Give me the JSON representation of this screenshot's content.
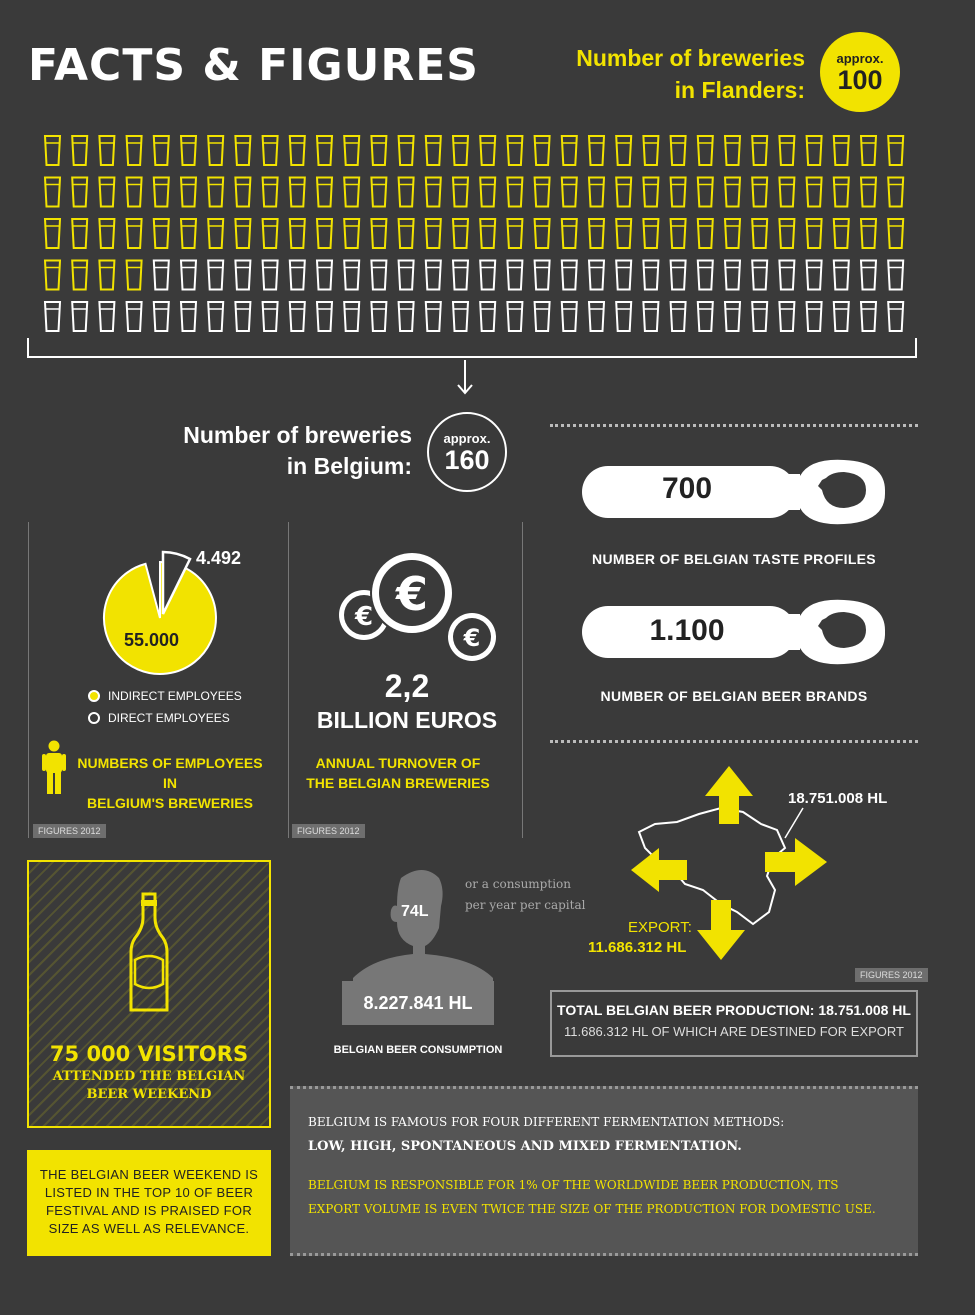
{
  "title": "FACTS & FIGURES",
  "flanders": {
    "label_line1": "Number of breweries",
    "label_line2": "in Flanders:",
    "approx": "approx.",
    "count": "100",
    "count_value": 100
  },
  "belgium": {
    "label_line1": "Number of breweries",
    "label_line2": "in Belgium:",
    "approx": "approx.",
    "count": "160",
    "count_value": 160
  },
  "employees": {
    "direct_value": "4.492",
    "indirect_value": "55.000",
    "legend_indirect": "INDIRECT EMPLOYEES",
    "legend_direct": "DIRECT EMPLOYEES",
    "label_line1": "NUMBERS OF EMPLOYEES IN",
    "label_line2": "BELGIUM'S BREWERIES",
    "figures": "FIGURES 2012"
  },
  "turnover": {
    "value": "2,2",
    "unit": "BILLION EUROS",
    "label_line1": "ANNUAL TURNOVER OF",
    "label_line2": "THE BELGIAN BREWERIES",
    "figures": "FIGURES 2012"
  },
  "taste_profiles": {
    "value": "700",
    "label": "NUMBER OF BELGIAN TASTE PROFILES"
  },
  "beer_brands": {
    "value": "1.100",
    "label": "NUMBER OF BELGIAN BEER BRANDS"
  },
  "map": {
    "total": "18.751.008 HL",
    "export_label": "EXPORT:",
    "export_value": "11.686.312 HL",
    "figures": "FIGURES 2012"
  },
  "consumption": {
    "per_capita": "74L",
    "note_line1": "or a consumption",
    "note_line2": "per year per capital",
    "value": "8.227.841 HL",
    "label": "BELGIAN BEER CONSUMPTION"
  },
  "production": {
    "line1": "TOTAL BELGIAN BEER PRODUCTION: 18.751.008 HL",
    "line2": "11.686.312 HL OF WHICH ARE DESTINED FOR EXPORT"
  },
  "visitors": {
    "number": "75 000 VISITORS",
    "line1": "ATTENDED THE BELGIAN",
    "line2": "BEER WEEKEND"
  },
  "weekend_box": {
    "line1": "THE BELGIAN BEER WEEKEND IS",
    "line2": "LISTED IN THE TOP 10 OF BEER",
    "line3": "FESTIVAL AND IS PRAISED FOR",
    "line4": "SIZE AS WELL AS RELEVANCE."
  },
  "fermentation": {
    "line1": "BELGIUM IS FAMOUS FOR FOUR DIFFERENT FERMENTATION METHODS:",
    "line2": "LOW, HIGH, SPONTANEOUS AND MIXED FERMENTATION.",
    "line3": "BELGIUM IS RESPONSIBLE FOR 1% OF THE WORLDWIDE BEER PRODUCTION, ITS",
    "line4": "EXPORT VOLUME IS EVEN TWICE THE SIZE OF THE PRODUCTION FOR DOMESTIC USE."
  },
  "colors": {
    "accent": "#f2e300",
    "background": "#3a3a3a",
    "dark": "#222222",
    "grey": "#6e6e6e"
  },
  "icons": [
    "beer-glass-icon",
    "arrow-down-icon",
    "bottle-opener-icon",
    "euro-coin-icon",
    "person-icon",
    "head-silhouette-icon",
    "beer-bottle-icon",
    "belgium-map-icon"
  ]
}
